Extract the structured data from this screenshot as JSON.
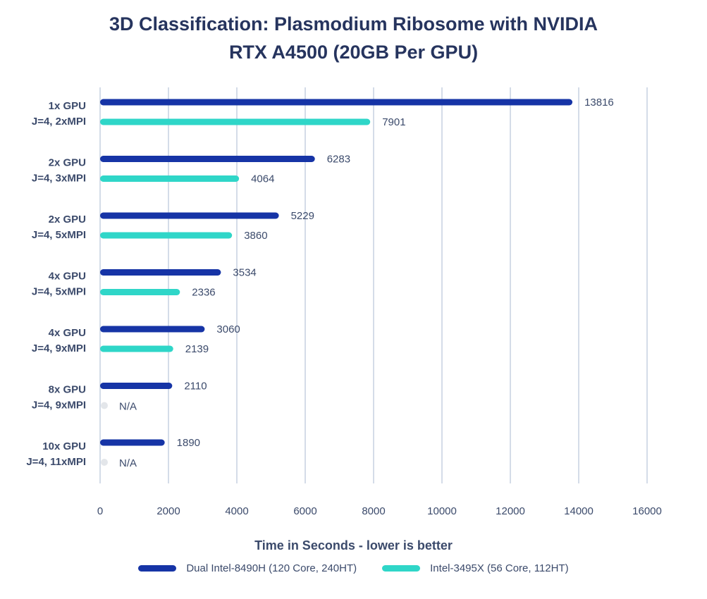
{
  "chart_data": {
    "type": "bar",
    "orientation": "horizontal",
    "title_lines": [
      "3D Classification: Plasmodium Ribosome with NVIDIA",
      "RTX A4500 (20GB Per GPU)"
    ],
    "xlabel": "Time in Seconds - lower is better",
    "xlim": [
      0,
      16000
    ],
    "xticks": [
      0,
      2000,
      4000,
      6000,
      8000,
      10000,
      12000,
      14000,
      16000
    ],
    "grid": "vertical",
    "legend_position": "bottom",
    "categories": [
      [
        "1x GPU",
        "J=4, 2xMPI"
      ],
      [
        "2x GPU",
        "J=4, 3xMPI"
      ],
      [
        "2x GPU",
        "J=4, 5xMPI"
      ],
      [
        "4x GPU",
        "J=4, 5xMPI"
      ],
      [
        "4x GPU",
        "J=4, 9xMPI"
      ],
      [
        "8x GPU",
        "J=4, 9xMPI"
      ],
      [
        "10x GPU",
        "J=4, 11xMPI"
      ]
    ],
    "series": [
      {
        "name": "Dual Intel-8490H (120 Core, 240HT)",
        "color": "#1634a6",
        "values": [
          13816,
          6283,
          5229,
          3534,
          3060,
          2110,
          1890
        ]
      },
      {
        "name": "Intel-3495X (56 Core, 112HT)",
        "color": "#2fd6c8",
        "values": [
          7901,
          4064,
          3860,
          2336,
          2139,
          null,
          null
        ]
      }
    ],
    "na_label": "N/A",
    "na_color": "#e3e6ea"
  }
}
